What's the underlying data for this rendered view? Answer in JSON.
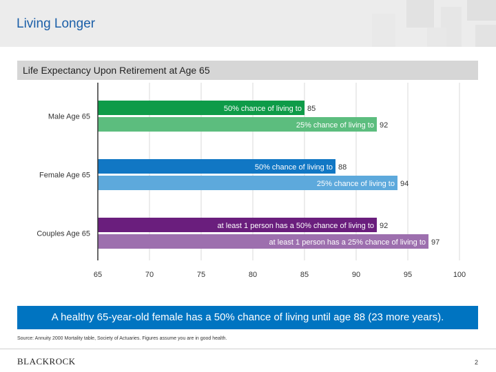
{
  "header": {
    "title": "Living Longer"
  },
  "subtitle": "Life Expectancy Upon Retirement at Age 65",
  "colors": {
    "male_50": "#0e9b48",
    "male_25": "#5cbd7e",
    "female_50": "#1177c4",
    "female_25": "#5da9dc",
    "couples_50": "#6a1e7d",
    "couples_25": "#9d6fae",
    "callout_bg": "#0074c1",
    "title": "#1b5fa8"
  },
  "chart_data": {
    "type": "bar",
    "orientation": "horizontal",
    "xlim": [
      65,
      100
    ],
    "xticks": [
      65,
      70,
      75,
      80,
      85,
      90,
      95,
      100
    ],
    "grid": true,
    "groups": [
      {
        "label": "Male Age 65",
        "bars": [
          {
            "label": "50% chance of living to",
            "value": 85,
            "color_key": "male_50"
          },
          {
            "label": "25% chance of living to",
            "value": 92,
            "color_key": "male_25"
          }
        ]
      },
      {
        "label": "Female Age 65",
        "bars": [
          {
            "label": "50% chance of living to",
            "value": 88,
            "color_key": "female_50"
          },
          {
            "label": "25% chance of living to",
            "value": 94,
            "color_key": "female_25"
          }
        ]
      },
      {
        "label": "Couples Age 65",
        "bars": [
          {
            "label": "at least 1 person has a 50% chance of living to",
            "value": 92,
            "color_key": "couples_50"
          },
          {
            "label": "at least 1 person has a 25% chance of living to",
            "value": 97,
            "color_key": "couples_25"
          }
        ]
      }
    ]
  },
  "callout": "A healthy 65-year-old female has a 50% chance of living until age 88 (23 more years).",
  "source": "Source: Annuity 2000 Mortality table, Society of Actuaries. Figures assume you are in good health.",
  "footer": {
    "logo": "BLACKROCK",
    "page_number": "2"
  }
}
